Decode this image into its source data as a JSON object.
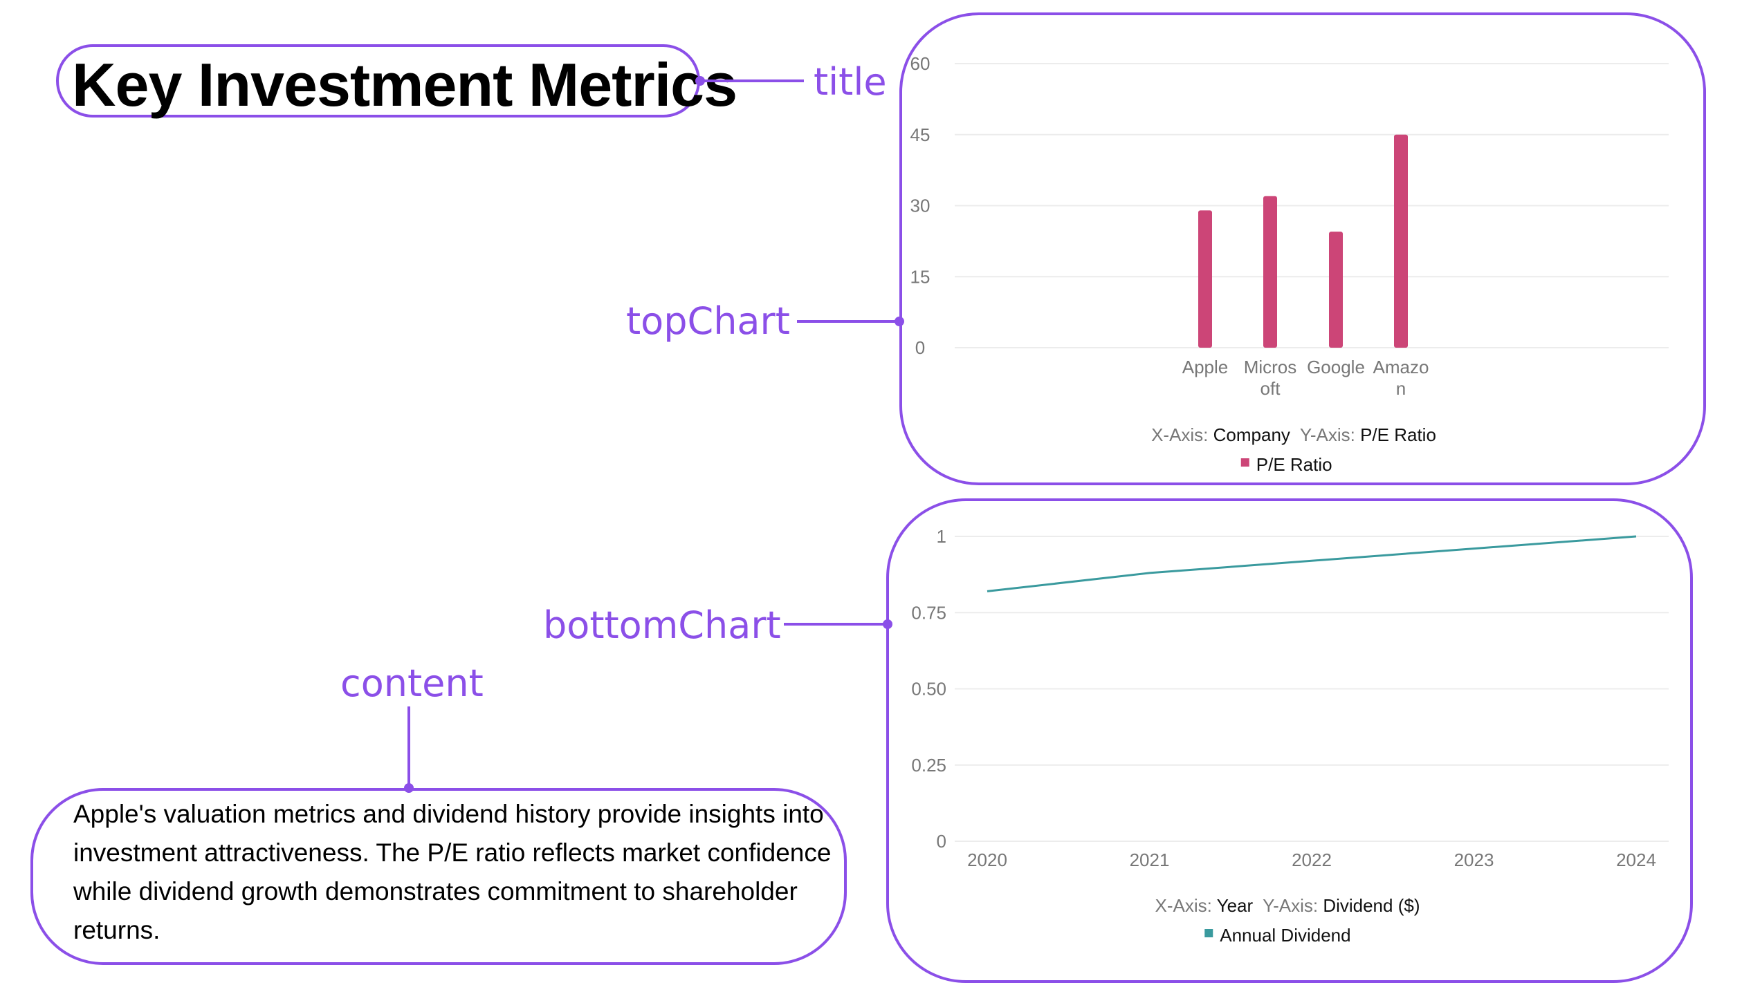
{
  "callouts": {
    "title": "title",
    "top_chart": "topChart",
    "bottom_chart": "bottomChart",
    "content": "content"
  },
  "title": "Key Investment Metrics",
  "content": "Apple's valuation metrics and dividend history provide insights into investment attractiveness. The P/E ratio reflects market confidence while dividend growth demonstrates commitment to shareholder returns.",
  "colors": {
    "accent": "#8b4fe8",
    "bar": "#cc4577",
    "line": "#3a9a9e"
  },
  "chart_data": [
    {
      "type": "bar",
      "categories": [
        "Apple",
        "Microsoft",
        "Google",
        "Amazon"
      ],
      "category_display": [
        [
          "Apple"
        ],
        [
          "Micros",
          "oft"
        ],
        [
          "Google"
        ],
        [
          "Amazo",
          "n"
        ]
      ],
      "series": [
        {
          "name": "P/E Ratio",
          "values": [
            29,
            32,
            24.5,
            45
          ]
        }
      ],
      "ylim": [
        0,
        60
      ],
      "yticks": [
        "0",
        "15",
        "30",
        "45",
        "60"
      ],
      "axis_info": {
        "x_prefix": "X-Axis:",
        "x_value": "Company",
        "y_prefix": "Y-Axis:",
        "y_value": "P/E Ratio"
      },
      "grid": true,
      "legend": "bottom"
    },
    {
      "type": "line",
      "x": [
        "2020",
        "2021",
        "2022",
        "2023",
        "2024"
      ],
      "series": [
        {
          "name": "Annual Dividend",
          "values": [
            0.82,
            0.88,
            0.92,
            0.96,
            1.0
          ]
        }
      ],
      "ylim": [
        0,
        1
      ],
      "yticks": [
        "0",
        "0.25",
        "0.50",
        "0.75",
        "1"
      ],
      "axis_info": {
        "x_prefix": "X-Axis:",
        "x_value": "Year",
        "y_prefix": "Y-Axis:",
        "y_value": "Dividend ($)"
      },
      "grid": true,
      "legend": "bottom"
    }
  ]
}
